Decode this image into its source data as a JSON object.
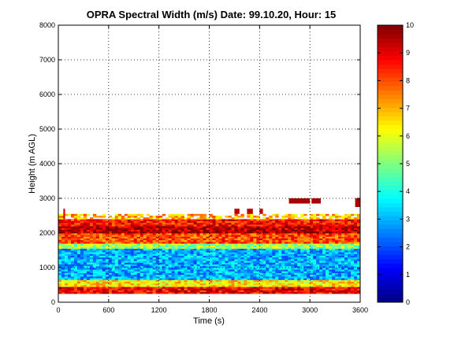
{
  "chart_data": {
    "type": "heatmap",
    "title": "OPRA Spectral Width (m/s)  Date: 99.10.20, Hour: 15",
    "xlabel": "Time (s)",
    "ylabel": "Height (m AGL)",
    "xlim": [
      0,
      3600
    ],
    "ylim": [
      0,
      8000
    ],
    "xticks": [
      "0",
      "600",
      "1200",
      "1800",
      "2400",
      "3000",
      "3600"
    ],
    "yticks": [
      "0",
      "1000",
      "2000",
      "3000",
      "4000",
      "5000",
      "6000",
      "7000",
      "8000"
    ],
    "grid": true,
    "colormap": "jet",
    "colorbar": {
      "range": [
        0,
        10
      ],
      "ticks": [
        "0",
        "1",
        "2",
        "3",
        "4",
        "5",
        "6",
        "7",
        "8",
        "9",
        "10"
      ]
    },
    "height_layers": [
      {
        "from": 250,
        "to": 450,
        "value": 8.8
      },
      {
        "from": 450,
        "to": 650,
        "value": 6.5
      },
      {
        "from": 650,
        "to": 1550,
        "value": 3.0
      },
      {
        "from": 1550,
        "to": 1700,
        "value": 5.2
      },
      {
        "from": 1700,
        "to": 2000,
        "value": 8.0
      },
      {
        "from": 2000,
        "to": 2200,
        "value": 9.4
      },
      {
        "from": 2200,
        "to": 2400,
        "value": 8.6
      },
      {
        "from": 2400,
        "to": 2550,
        "value": 7.0
      }
    ],
    "upper_patches": [
      {
        "t0": 2750,
        "t1": 3000,
        "h0": 2850,
        "h1": 3000,
        "value": 9.6
      },
      {
        "t0": 3020,
        "t1": 3130,
        "h0": 2850,
        "h1": 3000,
        "value": 9.6
      },
      {
        "t0": 3540,
        "t1": 3600,
        "h0": 2750,
        "h1": 3000,
        "value": 9.6
      },
      {
        "t0": 2100,
        "t1": 2160,
        "h0": 2550,
        "h1": 2700,
        "value": 9.4
      },
      {
        "t0": 2250,
        "t1": 2320,
        "h0": 2550,
        "h1": 2700,
        "value": 9.4
      },
      {
        "t0": 2400,
        "t1": 2440,
        "h0": 2550,
        "h1": 2700,
        "value": 9.4
      },
      {
        "t0": 60,
        "t1": 80,
        "h0": 2400,
        "h1": 2700,
        "value": 9.2
      }
    ]
  }
}
